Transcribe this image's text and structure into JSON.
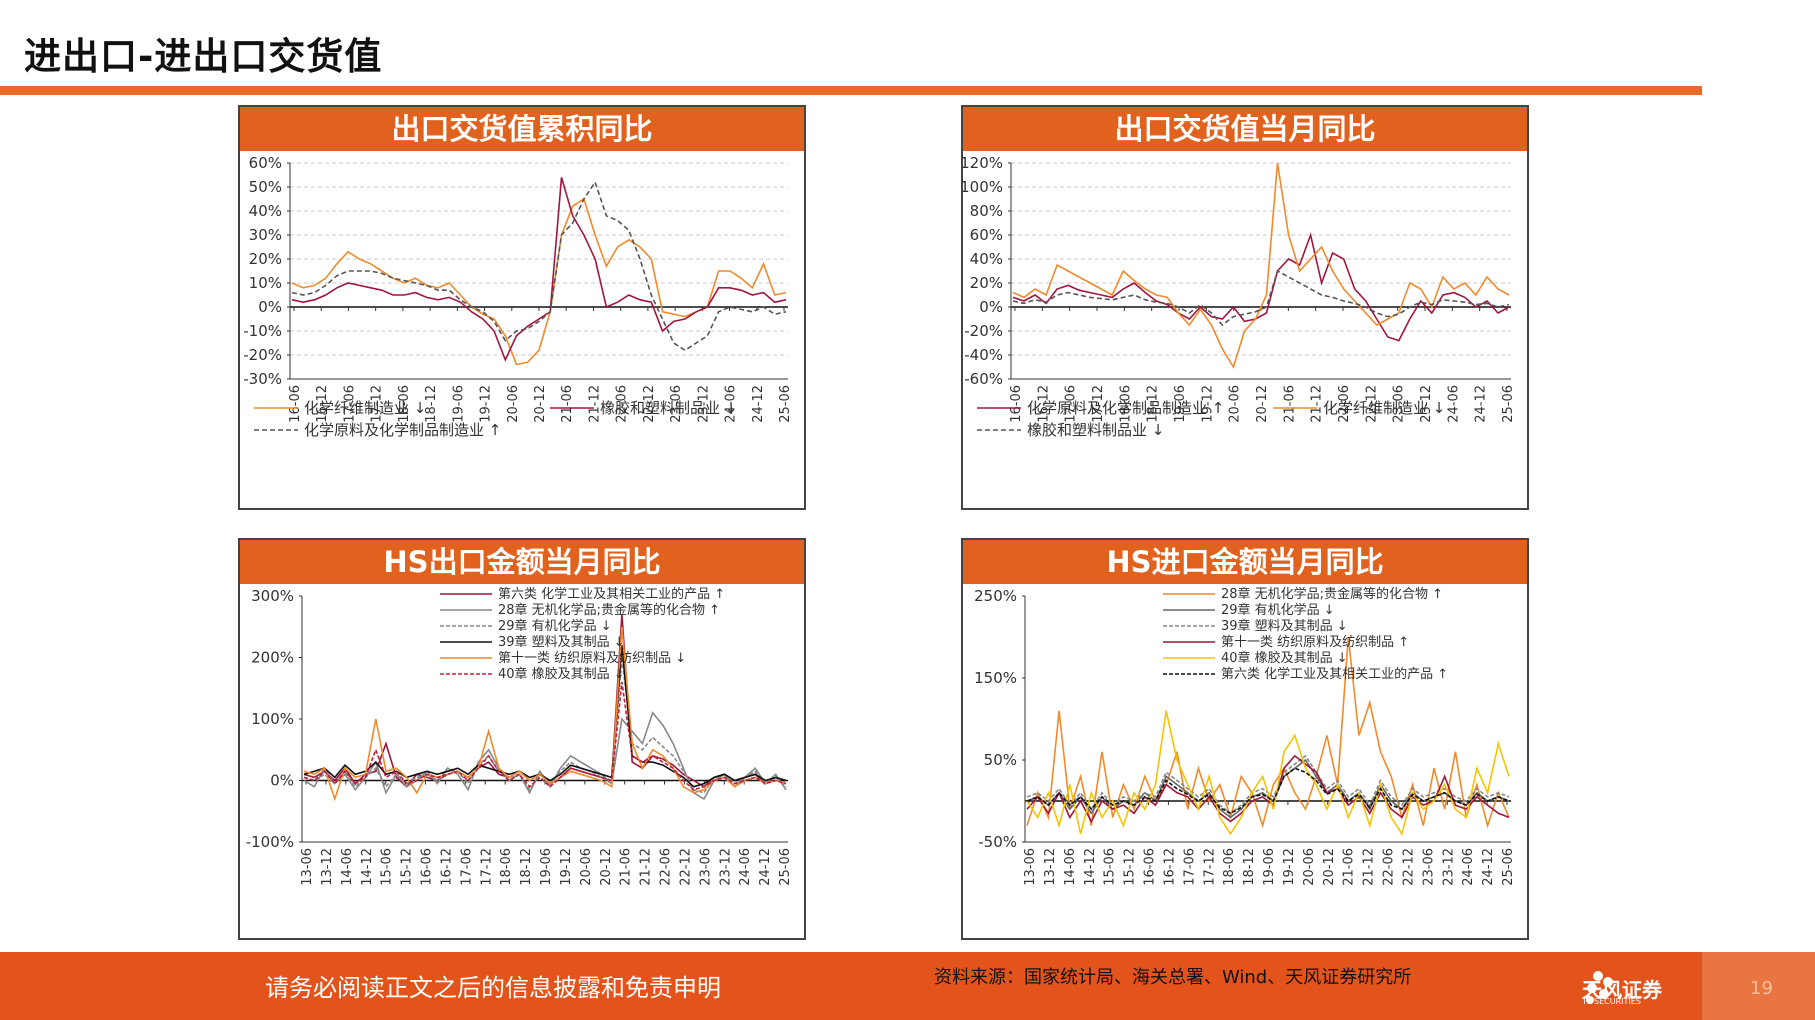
{
  "page": {
    "title": "进出口-进出口交货值",
    "footer_note": "请务必阅读正文之后的信息披露和免责申明",
    "source": "资料来源：国家统计局、海关总署、Wind、天风证券研究所",
    "logo_text": "天风证券",
    "logo_sub": "TF SECURITIES",
    "page_number": "19"
  },
  "chart_data": [
    {
      "id": "c1",
      "type": "line",
      "title": "出口交货值累积同比",
      "yticks": [
        "60%",
        "50%",
        "40%",
        "30%",
        "20%",
        "10%",
        "0%",
        "-10%",
        "-20%",
        "-30%"
      ],
      "ylim": [
        -30,
        60
      ],
      "x_ticks": [
        "16-06",
        "16-12",
        "17-06",
        "17-12",
        "18-06",
        "18-12",
        "19-06",
        "19-12",
        "20-06",
        "20-12",
        "21-06",
        "21-12",
        "22-06",
        "22-12",
        "23-06",
        "23-12",
        "24-06",
        "24-12",
        "25-06"
      ],
      "legend": [
        "化学纤维制造业 ↓",
        "橡胶和塑料制品业 ↓",
        "化学原料及化学制品制造业 ↑"
      ],
      "series": [
        {
          "name": "化学纤维制造业 ↓",
          "color": "#f08a2c",
          "dash": "",
          "values": [
            10,
            8,
            9,
            12,
            18,
            23,
            20,
            18,
            15,
            12,
            10,
            12,
            9,
            8,
            10,
            5,
            0,
            -3,
            -5,
            -12,
            -24,
            -23,
            -18,
            -2,
            30,
            42,
            45,
            30,
            17,
            25,
            28,
            25,
            20,
            -2,
            -3,
            -4,
            -2,
            0,
            15,
            15,
            12,
            8,
            18,
            5,
            6
          ]
        },
        {
          "name": "橡胶和塑料制品业 ↓",
          "color": "#a0163c",
          "dash": "",
          "values": [
            3,
            2,
            3,
            5,
            8,
            10,
            9,
            8,
            7,
            5,
            5,
            6,
            4,
            3,
            4,
            2,
            -2,
            -5,
            -10,
            -22,
            -12,
            -8,
            -5,
            -2,
            54,
            38,
            30,
            20,
            0,
            2,
            5,
            3,
            2,
            -10,
            -6,
            -5,
            -2,
            0,
            8,
            8,
            7,
            5,
            6,
            2,
            3
          ]
        },
        {
          "name": "化学原料及化学制品制造业 ↑",
          "color": "#555555",
          "dash": "5,3",
          "values": [
            6,
            5,
            6,
            9,
            13,
            15,
            15,
            15,
            14,
            12,
            11,
            10,
            9,
            7,
            7,
            3,
            0,
            -2,
            -6,
            -14,
            -10,
            -9,
            -6,
            -2,
            30,
            35,
            45,
            52,
            38,
            36,
            32,
            20,
            5,
            -5,
            -15,
            -18,
            -15,
            -12,
            -2,
            0,
            -1,
            -2,
            0,
            -3,
            -2
          ]
        }
      ]
    },
    {
      "id": "c2",
      "type": "line",
      "title": "出口交货值当月同比",
      "yticks": [
        "120%",
        "100%",
        "80%",
        "60%",
        "40%",
        "20%",
        "0%",
        "-20%",
        "-40%",
        "-60%"
      ],
      "ylim": [
        -60,
        120
      ],
      "x_ticks": [
        "16-06",
        "16-12",
        "17-06",
        "17-12",
        "18-06",
        "18-12",
        "19-06",
        "19-12",
        "20-06",
        "20-12",
        "21-06",
        "21-12",
        "22-06",
        "22-12",
        "23-06",
        "23-12",
        "24-06",
        "24-12",
        "25-06"
      ],
      "legend": [
        "化学原料及化学制品制造业 ↑",
        "化学纤维制造业 ↓",
        "橡胶和塑料制品业 ↓"
      ],
      "series": [
        {
          "name": "化学原料及化学制品制造业 ↑",
          "color": "#a0163c",
          "dash": "",
          "values": [
            8,
            5,
            10,
            3,
            15,
            18,
            14,
            12,
            10,
            8,
            15,
            20,
            12,
            5,
            2,
            -5,
            -10,
            0,
            -8,
            -10,
            0,
            -12,
            -10,
            -5,
            30,
            40,
            35,
            60,
            20,
            45,
            40,
            15,
            5,
            -10,
            -25,
            -28,
            -10,
            5,
            -5,
            10,
            12,
            8,
            0,
            5,
            -5,
            0
          ]
        },
        {
          "name": "化学纤维制造业 ↓",
          "color": "#f08a2c",
          "dash": "",
          "values": [
            12,
            8,
            15,
            10,
            35,
            30,
            25,
            20,
            15,
            10,
            30,
            22,
            15,
            10,
            8,
            -5,
            -15,
            -2,
            -15,
            -35,
            -50,
            -20,
            -10,
            10,
            120,
            60,
            30,
            40,
            50,
            30,
            15,
            5,
            -5,
            -15,
            -10,
            -5,
            20,
            15,
            0,
            25,
            15,
            20,
            10,
            25,
            15,
            10
          ]
        },
        {
          "name": "橡胶和塑料制品业 ↓",
          "color": "#555555",
          "dash": "5,3",
          "values": [
            5,
            3,
            6,
            4,
            10,
            12,
            10,
            8,
            7,
            6,
            8,
            10,
            6,
            4,
            3,
            0,
            -5,
            2,
            -5,
            -15,
            -8,
            -6,
            -4,
            0,
            30,
            25,
            20,
            15,
            10,
            8,
            5,
            3,
            0,
            -5,
            -8,
            -6,
            0,
            4,
            2,
            6,
            5,
            4,
            2,
            3,
            0,
            2
          ]
        }
      ]
    },
    {
      "id": "c3",
      "type": "line",
      "title": "HS出口金额当月同比",
      "yticks": [
        "300%",
        "200%",
        "100%",
        "0%",
        "-100%"
      ],
      "ylim": [
        -100,
        300
      ],
      "x_ticks": [
        "13-06",
        "13-12",
        "14-06",
        "14-12",
        "15-06",
        "15-12",
        "16-06",
        "16-12",
        "17-06",
        "17-12",
        "18-06",
        "18-12",
        "19-06",
        "19-12",
        "20-06",
        "20-12",
        "21-06",
        "21-12",
        "22-06",
        "22-12",
        "23-06",
        "23-12",
        "24-06",
        "24-12",
        "25-06"
      ],
      "legend": [
        "第六类 化学工业及其相关工业的产品 ↑",
        "28章 无机化学品;贵金属等的化合物 ↑",
        "29章 有机化学品 ↓",
        "39章 塑料及其制品 ↓",
        "第十一类 纺织原料及纺织制品 ↓",
        "40章 橡胶及其制品 ↓"
      ],
      "series": [
        {
          "name": "第六类 化学工业及其相关工业的产品 ↑",
          "color": "#a0163c",
          "dash": "",
          "values": [
            10,
            5,
            15,
            0,
            20,
            -5,
            10,
            15,
            60,
            5,
            -10,
            10,
            5,
            0,
            10,
            15,
            5,
            20,
            30,
            10,
            5,
            15,
            0,
            10,
            -5,
            5,
            20,
            15,
            10,
            5,
            0,
            270,
            30,
            20,
            40,
            35,
            25,
            10,
            0,
            -10,
            5,
            10,
            0,
            5,
            10,
            -5,
            5,
            0
          ]
        },
        {
          "name": "28章 无机化学品;贵金属等的化合物 ↑",
          "color": "#888888",
          "dash": "",
          "values": [
            0,
            -10,
            20,
            -5,
            10,
            -15,
            5,
            30,
            -20,
            10,
            -10,
            0,
            15,
            -5,
            20,
            10,
            -15,
            30,
            50,
            20,
            0,
            10,
            -20,
            15,
            -10,
            20,
            40,
            30,
            20,
            10,
            -5,
            100,
            80,
            60,
            110,
            90,
            60,
            20,
            -20,
            -30,
            0,
            10,
            -10,
            5,
            20,
            -5,
            10,
            -15
          ]
        },
        {
          "name": "29章 有机化学品 ↓",
          "color": "#888888",
          "dash": "4,2",
          "values": [
            5,
            0,
            10,
            -5,
            15,
            -10,
            5,
            20,
            -10,
            10,
            -5,
            5,
            10,
            0,
            20,
            15,
            -5,
            25,
            40,
            15,
            5,
            10,
            -15,
            10,
            -5,
            15,
            30,
            20,
            15,
            5,
            -5,
            200,
            60,
            50,
            70,
            55,
            40,
            15,
            -15,
            -20,
            5,
            10,
            -5,
            5,
            15,
            -5,
            5,
            -10
          ]
        },
        {
          "name": "39章 塑料及其制品 ↓",
          "color": "#111111",
          "dash": "",
          "values": [
            10,
            15,
            20,
            5,
            25,
            10,
            15,
            30,
            10,
            15,
            5,
            10,
            15,
            10,
            15,
            20,
            10,
            25,
            20,
            15,
            10,
            15,
            5,
            10,
            0,
            10,
            25,
            20,
            15,
            10,
            5,
            220,
            40,
            30,
            30,
            25,
            15,
            5,
            -10,
            -5,
            5,
            10,
            0,
            5,
            10,
            0,
            5,
            0
          ]
        },
        {
          "name": "第十一类 纺织原料及纺织制品 ↓",
          "color": "#f08a2c",
          "dash": "",
          "values": [
            15,
            10,
            20,
            -30,
            20,
            5,
            10,
            100,
            15,
            20,
            5,
            -20,
            10,
            5,
            10,
            15,
            5,
            20,
            80,
            20,
            5,
            15,
            0,
            10,
            -5,
            5,
            15,
            10,
            5,
            0,
            -10,
            250,
            60,
            20,
            50,
            40,
            20,
            -10,
            -20,
            -15,
            0,
            5,
            -10,
            0,
            5,
            -5,
            0,
            -5
          ]
        },
        {
          "name": "40章 橡胶及其制品 ↓",
          "color": "#c0203c",
          "dash": "4,2",
          "values": [
            5,
            0,
            15,
            -5,
            15,
            -5,
            5,
            50,
            5,
            15,
            -5,
            0,
            10,
            5,
            10,
            15,
            0,
            20,
            40,
            15,
            0,
            10,
            -10,
            5,
            -10,
            5,
            20,
            15,
            10,
            5,
            0,
            160,
            40,
            30,
            40,
            30,
            20,
            0,
            -15,
            -10,
            0,
            5,
            -5,
            0,
            5,
            -5,
            0,
            -5
          ]
        }
      ]
    },
    {
      "id": "c4",
      "type": "line",
      "title": "HS进口金额当月同比",
      "yticks": [
        "250%",
        "150%",
        "50%",
        "-50%"
      ],
      "ylim": [
        -50,
        250
      ],
      "x_ticks": [
        "13-06",
        "13-12",
        "14-06",
        "14-12",
        "15-06",
        "15-12",
        "16-06",
        "16-12",
        "17-06",
        "17-12",
        "18-06",
        "18-12",
        "19-06",
        "19-12",
        "20-06",
        "20-12",
        "21-06",
        "21-12",
        "22-06",
        "22-12",
        "23-06",
        "23-12",
        "24-06",
        "24-12",
        "25-06"
      ],
      "legend": [
        "28章 无机化学品;贵金属等的化合物 ↑",
        "29章 有机化学品 ↓",
        "39章 塑料及其制品 ↓",
        "第十一类 纺织原料及纺织制品 ↑",
        "40章 橡胶及其制品 ↓",
        "第六类 化学工业及其相关工业的产品 ↑"
      ],
      "series": [
        {
          "name": "28章 无机化学品;贵金属等的化合物 ↑",
          "color": "#f08a2c",
          "dash": "",
          "values": [
            -30,
            10,
            -20,
            110,
            -10,
            30,
            -30,
            60,
            -20,
            20,
            -10,
            30,
            0,
            20,
            60,
            -10,
            40,
            0,
            20,
            -20,
            30,
            10,
            -30,
            20,
            40,
            10,
            -10,
            30,
            80,
            20,
            200,
            80,
            120,
            60,
            30,
            -20,
            20,
            -30,
            40,
            -10,
            60,
            -20,
            20,
            -30,
            10,
            -20
          ]
        },
        {
          "name": "29章 有机化学品 ↓",
          "color": "#666666",
          "dash": "",
          "values": [
            0,
            5,
            -5,
            10,
            -10,
            5,
            -15,
            5,
            -10,
            0,
            -5,
            10,
            0,
            30,
            20,
            10,
            0,
            10,
            -10,
            -20,
            -10,
            5,
            10,
            0,
            30,
            40,
            50,
            30,
            10,
            20,
            0,
            10,
            -10,
            20,
            0,
            -10,
            10,
            0,
            5,
            10,
            0,
            -5,
            10,
            0,
            5,
            0
          ]
        },
        {
          "name": "39章 塑料及其制品 ↓",
          "color": "#888888",
          "dash": "4,2",
          "values": [
            5,
            10,
            0,
            15,
            -5,
            10,
            -10,
            10,
            -5,
            5,
            0,
            10,
            5,
            35,
            25,
            15,
            5,
            15,
            -5,
            -15,
            -5,
            10,
            15,
            5,
            35,
            45,
            55,
            35,
            15,
            25,
            5,
            15,
            -5,
            25,
            5,
            -5,
            15,
            5,
            10,
            15,
            5,
            0,
            15,
            5,
            10,
            5
          ]
        },
        {
          "name": "第十一类 纺织原料及纺织制品 ↑",
          "color": "#a0163c",
          "dash": "",
          "values": [
            -10,
            5,
            -15,
            10,
            -20,
            0,
            -25,
            0,
            -10,
            -5,
            -15,
            5,
            -5,
            20,
            10,
            5,
            -10,
            5,
            -15,
            -25,
            -15,
            0,
            5,
            -5,
            40,
            55,
            45,
            35,
            10,
            15,
            -5,
            5,
            -15,
            10,
            -10,
            -20,
            5,
            -5,
            0,
            30,
            -5,
            -10,
            5,
            -5,
            -15,
            -20
          ]
        },
        {
          "name": "40章 橡胶及其制品 ↓",
          "color": "#f5c400",
          "dash": "",
          "values": [
            0,
            -20,
            10,
            -30,
            20,
            -40,
            10,
            -20,
            0,
            -30,
            10,
            -10,
            20,
            110,
            50,
            20,
            -10,
            30,
            -20,
            -40,
            -20,
            10,
            30,
            -10,
            60,
            80,
            40,
            20,
            -10,
            20,
            -20,
            10,
            -30,
            20,
            -20,
            -40,
            10,
            -10,
            0,
            20,
            -10,
            -20,
            40,
            10,
            70,
            30
          ]
        },
        {
          "name": "第六类 化学工业及其相关工业的产品 ↑",
          "color": "#111111",
          "dash": "4,2",
          "values": [
            0,
            5,
            -5,
            10,
            -5,
            5,
            -10,
            5,
            -5,
            0,
            -5,
            5,
            0,
            25,
            15,
            8,
            0,
            8,
            -8,
            -15,
            -8,
            5,
            8,
            0,
            30,
            40,
            35,
            25,
            8,
            15,
            0,
            8,
            -8,
            15,
            -5,
            -10,
            8,
            0,
            5,
            10,
            0,
            -5,
            8,
            0,
            5,
            0
          ]
        }
      ]
    }
  ]
}
